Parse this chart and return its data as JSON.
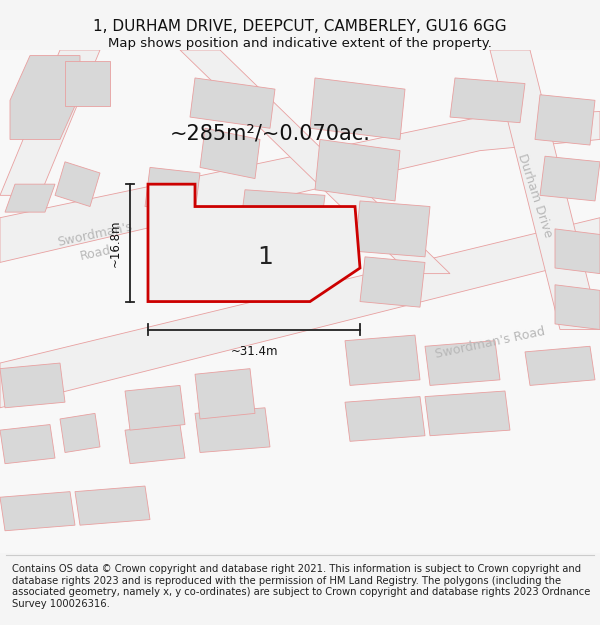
{
  "title": "1, DURHAM DRIVE, DEEPCUT, CAMBERLEY, GU16 6GG",
  "subtitle": "Map shows position and indicative extent of the property.",
  "area_label": "~285m²/~0.070ac.",
  "plot_number": "1",
  "width_label": "~31.4m",
  "height_label": "~16.8m",
  "footer": "Contains OS data © Crown copyright and database right 2021. This information is subject to Crown copyright and database rights 2023 and is reproduced with the permission of HM Land Registry. The polygons (including the associated geometry, namely x, y co-ordinates) are subject to Crown copyright and database rights 2023 Ordnance Survey 100026316.",
  "bg_color": "#f5f5f5",
  "map_bg": "#f8f8f8",
  "building_fill": "#d8d8d8",
  "road_outline": "#e8a0a0",
  "highlight_stroke": "#cc0000",
  "highlight_fill": "#f0f0f0",
  "road_label_color": "#b8b8b8",
  "title_fontsize": 11,
  "subtitle_fontsize": 9.5,
  "footer_fontsize": 7.2
}
